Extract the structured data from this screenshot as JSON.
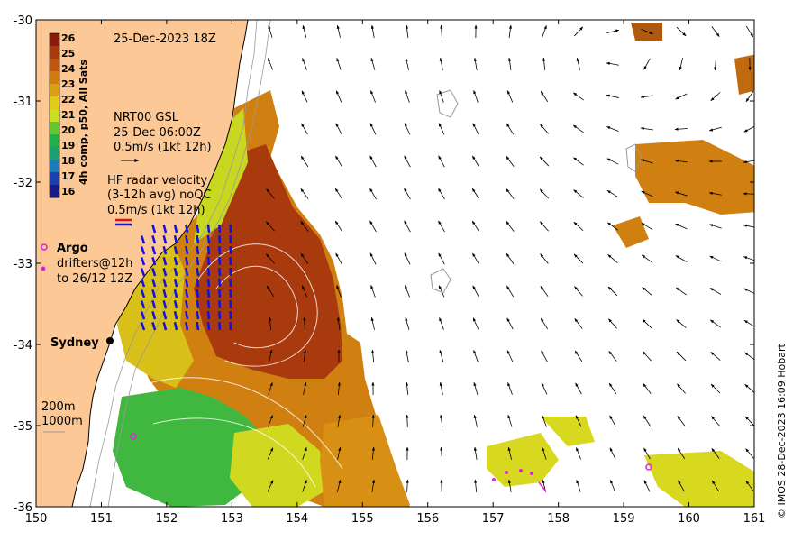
{
  "title": "25-Dec-2023 18Z",
  "colorbar": {
    "title": "4h comp, p50, All Sats",
    "labels": [
      "26",
      "25",
      "24",
      "23",
      "22",
      "21",
      "20",
      "19",
      "18",
      "17",
      "16"
    ],
    "colors": [
      "#8b1a0a",
      "#a83a0e",
      "#c0570f",
      "#d07a10",
      "#d8a012",
      "#e0cc18",
      "#c8e020",
      "#60c830",
      "#20b048",
      "#1ca070",
      "#1e7ab8",
      "#1f3fb0",
      "#1a1a80"
    ]
  },
  "x_axis": {
    "ticks": [
      "150",
      "151",
      "152",
      "153",
      "154",
      "155",
      "156",
      "157",
      "158",
      "159",
      "160",
      "161"
    ]
  },
  "y_axis": {
    "ticks": [
      "-30",
      "-31",
      "-32",
      "-33",
      "-34",
      "-35",
      "-36"
    ]
  },
  "legend": {
    "gsl": {
      "line1": "NRT00 GSL",
      "line2": "25-Dec 06:00Z",
      "line3": "0.5m/s (1kt 12h)"
    },
    "hf": {
      "line1": "HF radar velocity",
      "line2": "(3-12h avg) noQC",
      "line3": "0.5m/s (1kt 12h)"
    },
    "argo": {
      "label": "Argo"
    },
    "drifters": {
      "line1": "drifters@12h",
      "line2": "to 26/12 12Z"
    },
    "depth": {
      "line1": "200m",
      "line2": "1000m"
    }
  },
  "place_labels": {
    "sydney": "Sydney"
  },
  "copyright": "© IMOS 28-Dec-2023 16:09 Hobart",
  "colors": {
    "land": "#fcc896",
    "ocean": "#ffffff",
    "hf_blue": "#1010e0",
    "hf_red": "#e01010",
    "argo": "#e020e0",
    "drifter": "#e020e0"
  }
}
